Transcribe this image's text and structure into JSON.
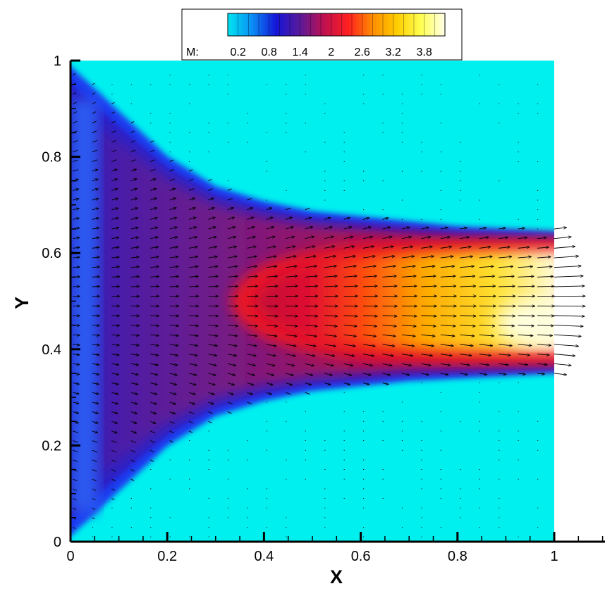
{
  "chart_data": {
    "type": "heatmap",
    "title": "",
    "xlabel": "X",
    "ylabel": "Y",
    "xlim": [
      0,
      1.1
    ],
    "ylim": [
      0,
      1
    ],
    "x_ticks": [
      "0",
      "0.2",
      "0.4",
      "0.6",
      "0.8",
      "1"
    ],
    "y_ticks": [
      "0",
      "0.2",
      "0.4",
      "0.6",
      "0.8",
      "1"
    ],
    "field_domain": {
      "x": [
        0,
        1
      ],
      "y": [
        0,
        1
      ]
    },
    "grid": false,
    "colorbar": {
      "variable_label": "M:",
      "range": [
        0,
        4.2
      ],
      "tick_labels": [
        "0.2",
        "0.8",
        "1.4",
        "2",
        "2.6",
        "3.2",
        "3.8"
      ],
      "placement": "top-center",
      "colors": [
        "#00e5f0",
        "#0a8ef5",
        "#1515d8",
        "#5a1a99",
        "#c01050",
        "#ff2020",
        "#ff8c00",
        "#ffcc00",
        "#ffff50",
        "#ffffe8"
      ]
    },
    "background_color": "#00f0f0",
    "jet_profile": {
      "description_fields": [
        "x",
        "upper_boundary_y",
        "lower_boundary_y"
      ],
      "x": [
        0.0,
        0.1,
        0.2,
        0.3,
        0.4,
        0.5,
        0.6,
        0.7,
        0.8,
        0.9,
        1.0
      ],
      "upper_boundary_y": [
        0.97,
        0.88,
        0.79,
        0.73,
        0.7,
        0.68,
        0.67,
        0.66,
        0.65,
        0.645,
        0.64
      ],
      "lower_boundary_y": [
        0.03,
        0.12,
        0.21,
        0.27,
        0.3,
        0.32,
        0.33,
        0.34,
        0.345,
        0.35,
        0.355
      ],
      "centerline_mach": [
        0.8,
        1.2,
        1.5,
        1.8,
        2.2,
        2.7,
        3.1,
        3.4,
        3.7,
        3.9,
        4.1
      ]
    },
    "vector_field": {
      "type": "velocity_arrows",
      "color": "#000000",
      "grid_dx": 0.04,
      "grid_dy": 0.02
    }
  }
}
